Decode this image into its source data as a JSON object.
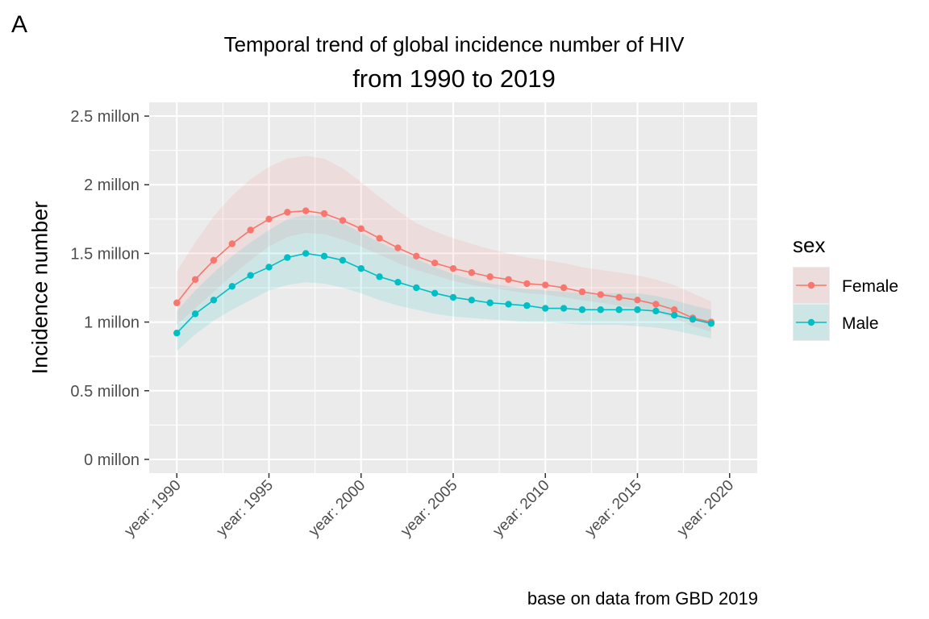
{
  "panel_tag": "A",
  "caption": "base on data from GBD 2019",
  "colors": {
    "Female": "#F8766D",
    "Male": "#00BFC4",
    "panel_bg": "#EBEBEB",
    "grid": "#FFFFFF"
  },
  "chart_data": {
    "type": "line",
    "title": "Temporal trend of global incidence number of HIV",
    "subtitle": "from 1990 to 2019",
    "xlabel": "",
    "ylabel": "Incidence number",
    "xlim": [
      1988.5,
      2021.5
    ],
    "ylim": [
      -0.1,
      2.6
    ],
    "x_ticks": [
      1990,
      1995,
      2000,
      2005,
      2010,
      2015,
      2020
    ],
    "x_tick_labels": [
      "year: 1990",
      "year: 1995",
      "year: 2000",
      "year: 2005",
      "year: 2010",
      "year: 2015",
      "year: 2020"
    ],
    "y_ticks": [
      0,
      0.5,
      1,
      1.5,
      2,
      2.5
    ],
    "y_tick_labels": [
      "0 millon",
      "0.5 millon",
      "1 millon",
      "1.5 millon",
      "2 millon",
      "2.5 millon"
    ],
    "grid": true,
    "legend": {
      "title": "sex",
      "position": "right"
    },
    "x": [
      1990,
      1991,
      1992,
      1993,
      1994,
      1995,
      1996,
      1997,
      1998,
      1999,
      2000,
      2001,
      2002,
      2003,
      2004,
      2005,
      2006,
      2007,
      2008,
      2009,
      2010,
      2011,
      2012,
      2013,
      2014,
      2015,
      2016,
      2017,
      2018,
      2019
    ],
    "series": [
      {
        "name": "Female",
        "values": [
          1.14,
          1.31,
          1.45,
          1.57,
          1.67,
          1.75,
          1.8,
          1.81,
          1.79,
          1.74,
          1.68,
          1.61,
          1.54,
          1.48,
          1.43,
          1.39,
          1.36,
          1.33,
          1.31,
          1.28,
          1.27,
          1.25,
          1.22,
          1.2,
          1.18,
          1.16,
          1.13,
          1.09,
          1.03,
          1.0
        ],
        "lower": [
          0.98,
          1.1,
          1.22,
          1.34,
          1.45,
          1.55,
          1.62,
          1.65,
          1.64,
          1.6,
          1.55,
          1.49,
          1.43,
          1.38,
          1.34,
          1.3,
          1.27,
          1.25,
          1.23,
          1.21,
          1.2,
          1.18,
          1.16,
          1.14,
          1.12,
          1.1,
          1.07,
          1.03,
          0.97,
          0.93
        ],
        "upper": [
          1.37,
          1.58,
          1.77,
          1.92,
          2.04,
          2.13,
          2.19,
          2.21,
          2.19,
          2.12,
          2.02,
          1.91,
          1.81,
          1.72,
          1.66,
          1.61,
          1.57,
          1.53,
          1.5,
          1.47,
          1.45,
          1.43,
          1.4,
          1.38,
          1.36,
          1.34,
          1.31,
          1.27,
          1.21,
          1.15
        ]
      },
      {
        "name": "Male",
        "values": [
          0.92,
          1.06,
          1.16,
          1.26,
          1.34,
          1.4,
          1.47,
          1.5,
          1.48,
          1.45,
          1.39,
          1.33,
          1.29,
          1.25,
          1.21,
          1.18,
          1.16,
          1.14,
          1.13,
          1.12,
          1.1,
          1.1,
          1.09,
          1.09,
          1.09,
          1.09,
          1.08,
          1.05,
          1.02,
          0.99
        ],
        "lower": [
          0.79,
          0.91,
          1.01,
          1.09,
          1.16,
          1.23,
          1.27,
          1.29,
          1.28,
          1.25,
          1.21,
          1.16,
          1.12,
          1.09,
          1.06,
          1.04,
          1.03,
          1.02,
          1.01,
          1.0,
          1.0,
          0.99,
          0.98,
          0.98,
          0.98,
          0.97,
          0.96,
          0.94,
          0.91,
          0.88
        ],
        "upper": [
          1.08,
          1.23,
          1.36,
          1.48,
          1.58,
          1.67,
          1.75,
          1.78,
          1.77,
          1.72,
          1.65,
          1.58,
          1.52,
          1.46,
          1.4,
          1.35,
          1.31,
          1.28,
          1.26,
          1.24,
          1.23,
          1.22,
          1.21,
          1.21,
          1.21,
          1.21,
          1.19,
          1.16,
          1.12,
          1.09
        ]
      }
    ]
  }
}
